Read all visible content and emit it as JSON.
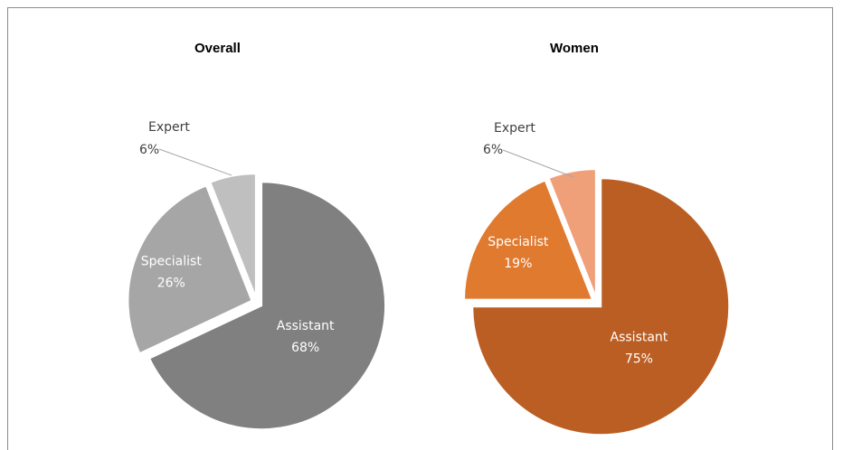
{
  "chart_data": [
    {
      "type": "pie",
      "title": "Overall",
      "categories": [
        "Assistant",
        "Specialist",
        "Expert"
      ],
      "values": [
        68,
        26,
        6
      ],
      "value_labels": [
        "68%",
        "26%",
        "6%"
      ],
      "colors": [
        "#808080",
        "#a6a6a6",
        "#bfbfbf"
      ],
      "exploded": true
    },
    {
      "type": "pie",
      "title": "Women",
      "categories": [
        "Assistant",
        "Specialist",
        "Expert"
      ],
      "values": [
        75,
        19,
        6
      ],
      "value_labels": [
        "75%",
        "19%",
        "6%"
      ],
      "colors": [
        "#bb5e23",
        "#e07a2f",
        "#f0a079"
      ],
      "exploded": true
    }
  ]
}
